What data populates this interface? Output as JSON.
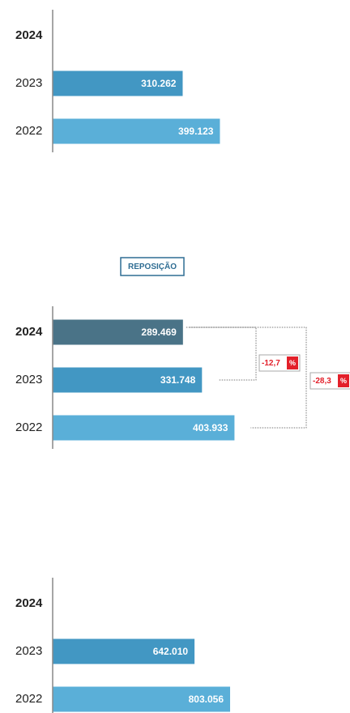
{
  "chart_data": [
    {
      "type": "bar",
      "orientation": "horizontal",
      "categories": [
        "2024",
        "2023",
        "2022"
      ],
      "values": [
        null,
        310262,
        399123
      ],
      "value_labels": [
        null,
        "310.262",
        "399.123"
      ],
      "colors": [
        "#4a7387",
        "#4297c3",
        "#5aafd8"
      ],
      "xlim": [
        0,
        580000
      ]
    },
    {
      "type": "bar",
      "orientation": "horizontal",
      "title": "REPOSIÇÃO",
      "categories": [
        "2024",
        "2023",
        "2022"
      ],
      "values": [
        289469,
        331748,
        403933
      ],
      "value_labels": [
        "289.469",
        "331.748",
        "403.933"
      ],
      "colors": [
        "#4a7387",
        "#4297c3",
        "#5aafd8"
      ],
      "xlim": [
        0,
        540000
      ],
      "annotations": [
        {
          "label": "-12,7",
          "unit": "%"
        },
        {
          "label": "-28,3",
          "unit": "%"
        }
      ]
    },
    {
      "type": "bar",
      "orientation": "horizontal",
      "categories": [
        "2024",
        "2023",
        "2022"
      ],
      "values": [
        null,
        642010,
        803056
      ],
      "value_labels": [
        null,
        "642.010",
        "803.056"
      ],
      "colors": [
        "#4a7387",
        "#4297c3",
        "#5aafd8"
      ],
      "xlim": [
        0,
        1100000
      ]
    }
  ]
}
